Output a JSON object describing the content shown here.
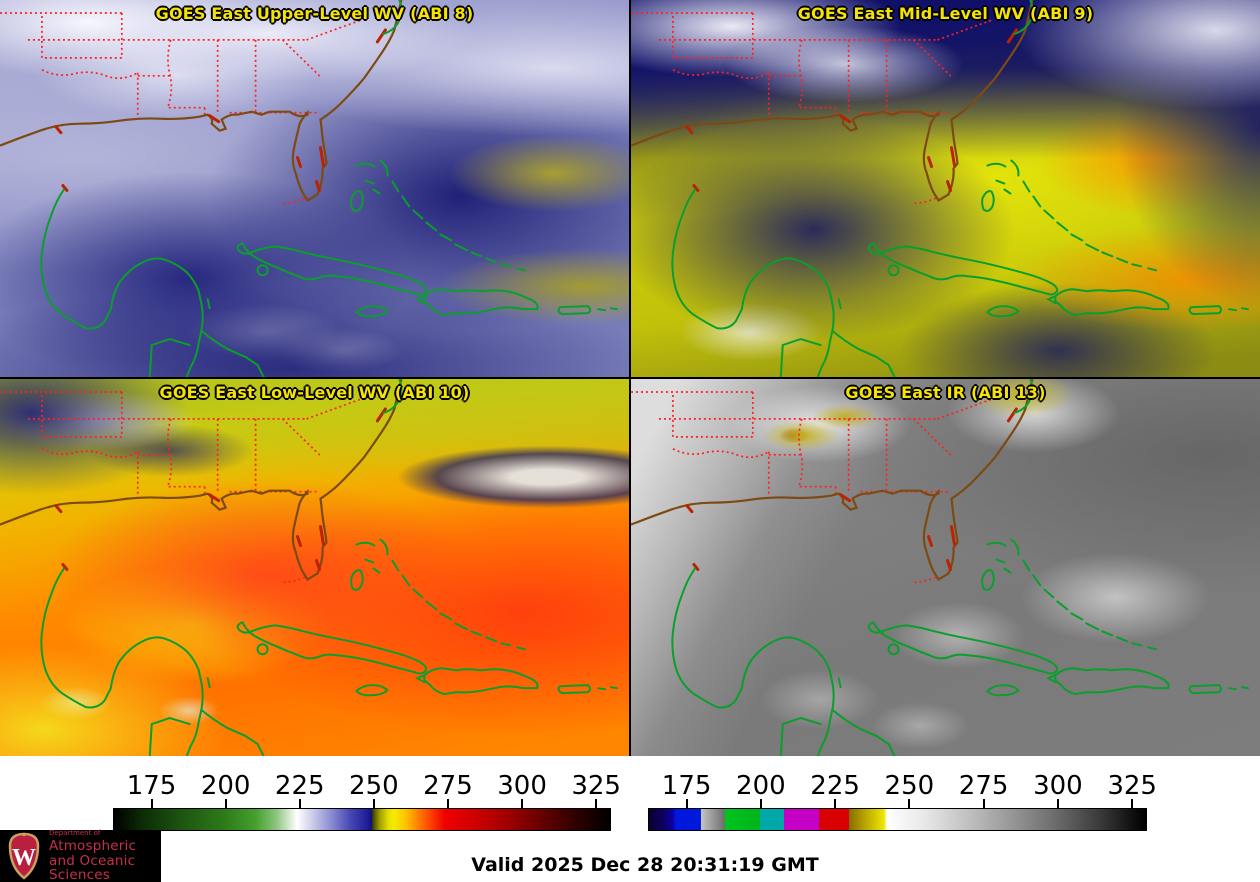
{
  "panels": [
    {
      "title": "GOES East Upper-Level WV (ABI 8)"
    },
    {
      "title": "GOES East Mid-Level WV (ABI 9)"
    },
    {
      "title": "GOES East Low-Level WV (ABI 10)"
    },
    {
      "title": "GOES East IR (ABI 13)"
    }
  ],
  "colorbars": [
    {
      "name": "water-vapor-colorbar",
      "tick_values": [
        175,
        200,
        225,
        250,
        275,
        300,
        325
      ],
      "range": [
        162,
        330
      ],
      "stops": [
        [
          0,
          "#000000"
        ],
        [
          6,
          "#0d2e06"
        ],
        [
          13.7,
          "#1d5511"
        ],
        [
          22.6,
          "#2e7c1a"
        ],
        [
          28.6,
          "#46a02e"
        ],
        [
          32.7,
          "#8cc47e"
        ],
        [
          36.9,
          "#ffffff"
        ],
        [
          39.3,
          "#d8d8ee"
        ],
        [
          43.5,
          "#9090d4"
        ],
        [
          47.6,
          "#4848b4"
        ],
        [
          51.2,
          "#1c1c96"
        ],
        [
          52,
          "#10107e"
        ],
        [
          52.1,
          "#3c3c00"
        ],
        [
          53.6,
          "#a0a000"
        ],
        [
          55.4,
          "#e8e000"
        ],
        [
          56.5,
          "#f5ea00"
        ],
        [
          58.9,
          "#ffc000"
        ],
        [
          61.3,
          "#ff8000"
        ],
        [
          63.7,
          "#ff4400"
        ],
        [
          66.7,
          "#f00000"
        ],
        [
          73.2,
          "#cc0000"
        ],
        [
          79.2,
          "#a00000"
        ],
        [
          86.9,
          "#600000"
        ],
        [
          94,
          "#280000"
        ],
        [
          100,
          "#000000"
        ]
      ]
    },
    {
      "name": "infrared-colorbar",
      "tick_values": [
        175,
        200,
        225,
        250,
        275,
        300,
        325
      ],
      "range": [
        162,
        330
      ],
      "stops": [
        [
          0,
          "#0c0030"
        ],
        [
          3,
          "#0e0060"
        ],
        [
          4.8,
          "#0b00a8"
        ],
        [
          5.4,
          "#0018dc"
        ],
        [
          10.4,
          "#0018dc"
        ],
        [
          10.5,
          "#c4c4c4"
        ],
        [
          15.2,
          "#6e6e6e"
        ],
        [
          15.3,
          "#00c41e"
        ],
        [
          22.3,
          "#00b41c"
        ],
        [
          22.4,
          "#00a8a8"
        ],
        [
          27.1,
          "#00a8a8"
        ],
        [
          27.2,
          "#c400c4"
        ],
        [
          34.2,
          "#c400c4"
        ],
        [
          34.3,
          "#d80000"
        ],
        [
          40.2,
          "#d80000"
        ],
        [
          40.3,
          "#8a6e00"
        ],
        [
          47.3,
          "#f0e600"
        ],
        [
          47.9,
          "#ffffff"
        ],
        [
          55.4,
          "#e8e8e8"
        ],
        [
          64.3,
          "#c0c0c0"
        ],
        [
          73.2,
          "#969696"
        ],
        [
          82.1,
          "#6a6a6a"
        ],
        [
          91.1,
          "#383838"
        ],
        [
          98.2,
          "#0a0a0a"
        ],
        [
          100,
          "#000000"
        ]
      ]
    }
  ],
  "footer": {
    "valid_time": "Valid 2025 Dec 28 20:31:19 GMT"
  },
  "logo": {
    "dept": "Department of",
    "line1": "Atmospheric",
    "line2": "and Oceanic Sciences",
    "crest_letter": "W"
  },
  "colors": {
    "title_yellow": "#f5e305",
    "state_border_red": "#ff2020",
    "us_coast_brown": "#7c4a12",
    "caribbean_green": "#0a9e2c",
    "coast_accent_red": "#bb2200"
  }
}
